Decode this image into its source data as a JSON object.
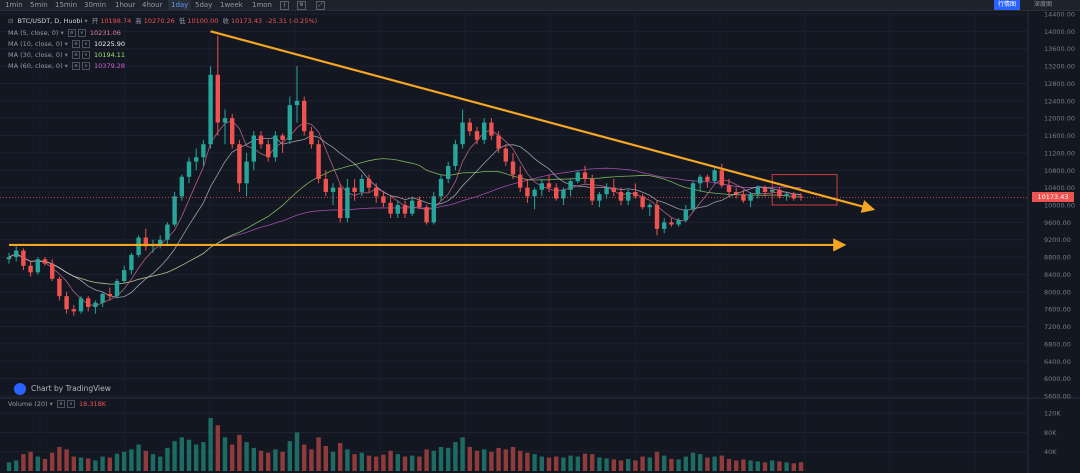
{
  "toolbar": {
    "timeframes": [
      "1min",
      "5min",
      "15min",
      "30min",
      "1hour",
      "4hour",
      "1day",
      "5day",
      "1week",
      "1mon"
    ],
    "active": "1day",
    "right_buttons": [
      "行情图",
      "深度图"
    ]
  },
  "legend": {
    "symbol": "BTC/USDT, D, Huobi",
    "open_label": "开",
    "open": "10198.74",
    "high_label": "高",
    "high": "10270.26",
    "low_label": "低",
    "low": "10100.00",
    "close_label": "收",
    "close": "10173.43",
    "change": "-25.31 (-0.25%)",
    "ma": [
      {
        "label": "MA (5, close, 0)",
        "value": "10231.06",
        "color": "#e57a9f"
      },
      {
        "label": "MA (10, close, 0)",
        "value": "10225.90",
        "color": "#f0f3fa"
      },
      {
        "label": "MA (30, close, 0)",
        "value": "10194.11",
        "color": "#9fe66d"
      },
      {
        "label": "MA (60, close, 0)",
        "value": "10379.28",
        "color": "#d15fd6"
      }
    ],
    "volume_label": "Volume (20)",
    "volume_value": "18.318K"
  },
  "watermark": "Chart by TradingView",
  "last_price": "10173.43",
  "chart_data": {
    "type": "candlestick",
    "price_axis_ticks": [
      "14400.00",
      "14000.00",
      "13600.00",
      "13200.00",
      "12800.00",
      "12400.00",
      "12000.00",
      "11600.00",
      "11200.00",
      "10800.00",
      "10400.00",
      "10000.00",
      "9600.00",
      "9200.00",
      "8800.00",
      "8400.00",
      "8000.00",
      "7600.00",
      "7200.00",
      "6800.00",
      "6400.00",
      "6000.00",
      "5600.00"
    ],
    "price_range": [
      5600,
      14400
    ],
    "volume_axis_ticks": [
      "120K",
      "80K",
      "40K"
    ],
    "volume_range": [
      0,
      135000
    ],
    "candles": [
      [
        8750,
        8900,
        8650,
        8800
      ],
      [
        8800,
        9050,
        8700,
        8950
      ],
      [
        8950,
        9000,
        8500,
        8600
      ],
      [
        8600,
        8700,
        8350,
        8450
      ],
      [
        8450,
        8800,
        8400,
        8750
      ],
      [
        8750,
        8800,
        8600,
        8650
      ],
      [
        8650,
        8750,
        8250,
        8300
      ],
      [
        8300,
        8350,
        7800,
        7900
      ],
      [
        7900,
        8000,
        7500,
        7600
      ],
      [
        7600,
        7700,
        7450,
        7550
      ],
      [
        7550,
        7900,
        7500,
        7850
      ],
      [
        7850,
        7900,
        7550,
        7650
      ],
      [
        7650,
        7800,
        7500,
        7750
      ],
      [
        7750,
        8000,
        7650,
        7950
      ],
      [
        7950,
        8100,
        7800,
        7900
      ],
      [
        7900,
        8300,
        7850,
        8250
      ],
      [
        8250,
        8600,
        8200,
        8500
      ],
      [
        8500,
        8900,
        8400,
        8850
      ],
      [
        8850,
        9300,
        8800,
        9250
      ],
      [
        9250,
        9450,
        8950,
        9050
      ],
      [
        9050,
        9200,
        8900,
        9100
      ],
      [
        9100,
        9300,
        9000,
        9200
      ],
      [
        9200,
        9600,
        9100,
        9550
      ],
      [
        9550,
        10300,
        9500,
        10200
      ],
      [
        10200,
        10700,
        10100,
        10650
      ],
      [
        10650,
        11100,
        10500,
        11000
      ],
      [
        11000,
        11300,
        10800,
        11100
      ],
      [
        11100,
        11500,
        10900,
        11400
      ],
      [
        11400,
        13200,
        11300,
        13000
      ],
      [
        13000,
        13900,
        11600,
        11900
      ],
      [
        11900,
        12200,
        11400,
        12000
      ],
      [
        12000,
        12100,
        11300,
        11400
      ],
      [
        11400,
        11500,
        10300,
        10500
      ],
      [
        10500,
        11200,
        10200,
        11000
      ],
      [
        11000,
        11700,
        10800,
        11600
      ],
      [
        11600,
        11700,
        11300,
        11400
      ],
      [
        11400,
        11500,
        11000,
        11100
      ],
      [
        11100,
        11700,
        11000,
        11600
      ],
      [
        11600,
        11650,
        11200,
        11500
      ],
      [
        11500,
        12500,
        11400,
        12300
      ],
      [
        12300,
        13200,
        11900,
        12400
      ],
      [
        12400,
        12500,
        11600,
        11700
      ],
      [
        11700,
        11800,
        11300,
        11400
      ],
      [
        11400,
        11500,
        10500,
        10600
      ],
      [
        10600,
        10800,
        10200,
        10300
      ],
      [
        10300,
        10500,
        10000,
        10400
      ],
      [
        10400,
        10500,
        9600,
        9700
      ],
      [
        9700,
        10600,
        9600,
        10400
      ],
      [
        10400,
        10600,
        10100,
        10300
      ],
      [
        10300,
        10700,
        10200,
        10600
      ],
      [
        10600,
        10700,
        10300,
        10400
      ],
      [
        10400,
        10500,
        10050,
        10200
      ],
      [
        10200,
        10300,
        9950,
        10050
      ],
      [
        10050,
        10200,
        9700,
        9800
      ],
      [
        9800,
        10100,
        9700,
        10000
      ],
      [
        10000,
        10100,
        9700,
        9800
      ],
      [
        9800,
        10200,
        9750,
        10100
      ],
      [
        10100,
        10200,
        9900,
        9950
      ],
      [
        9950,
        10000,
        9550,
        9600
      ],
      [
        9600,
        10300,
        9550,
        10200
      ],
      [
        10200,
        10700,
        10100,
        10600
      ],
      [
        10600,
        11000,
        10500,
        10900
      ],
      [
        10900,
        11500,
        10800,
        11400
      ],
      [
        11400,
        12200,
        11300,
        11900
      ],
      [
        11900,
        12000,
        11600,
        11700
      ],
      [
        11700,
        11800,
        11400,
        11500
      ],
      [
        11500,
        12000,
        11400,
        11900
      ],
      [
        11900,
        12000,
        11500,
        11600
      ],
      [
        11600,
        11700,
        11200,
        11300
      ],
      [
        11300,
        11400,
        10900,
        11000
      ],
      [
        11000,
        11200,
        10600,
        10700
      ],
      [
        10700,
        10900,
        10300,
        10400
      ],
      [
        10400,
        10600,
        10050,
        10200
      ],
      [
        10200,
        10400,
        9900,
        10350
      ],
      [
        10350,
        10600,
        10200,
        10500
      ],
      [
        10500,
        10700,
        10300,
        10400
      ],
      [
        10400,
        10500,
        10100,
        10150
      ],
      [
        10150,
        10400,
        10000,
        10350
      ],
      [
        10350,
        10600,
        10200,
        10550
      ],
      [
        10550,
        10800,
        10500,
        10750
      ],
      [
        10750,
        10900,
        10500,
        10600
      ],
      [
        10600,
        10700,
        10000,
        10100
      ],
      [
        10100,
        10300,
        9950,
        10250
      ],
      [
        10250,
        10500,
        10150,
        10400
      ],
      [
        10400,
        10600,
        10200,
        10300
      ],
      [
        10300,
        10400,
        10000,
        10100
      ],
      [
        10100,
        10350,
        10000,
        10300
      ],
      [
        10300,
        10500,
        10150,
        10200
      ],
      [
        10200,
        10250,
        9900,
        9950
      ],
      [
        9950,
        10050,
        9750,
        10000
      ],
      [
        10000,
        10100,
        9300,
        9450
      ],
      [
        9450,
        9700,
        9350,
        9600
      ],
      [
        9600,
        9700,
        9500,
        9550
      ],
      [
        9550,
        9700,
        9500,
        9650
      ],
      [
        9650,
        10000,
        9600,
        9900
      ],
      [
        9900,
        10550,
        9850,
        10500
      ],
      [
        10500,
        10700,
        10300,
        10650
      ],
      [
        10650,
        10700,
        10400,
        10550
      ],
      [
        10550,
        10850,
        10500,
        10800
      ],
      [
        10800,
        10950,
        10400,
        10450
      ],
      [
        10450,
        10600,
        10200,
        10300
      ],
      [
        10300,
        10400,
        10150,
        10250
      ],
      [
        10250,
        10350,
        10050,
        10100
      ],
      [
        10100,
        10300,
        9950,
        10250
      ],
      [
        10250,
        10450,
        10150,
        10400
      ],
      [
        10400,
        10450,
        10200,
        10300
      ],
      [
        10300,
        10400,
        10200,
        10350
      ],
      [
        10350,
        10400,
        10150,
        10200
      ],
      [
        10200,
        10300,
        10100,
        10250
      ],
      [
        10250,
        10300,
        10100,
        10150
      ],
      [
        10198.74,
        10270.26,
        10100,
        10173.43
      ]
    ],
    "volumes": [
      18,
      22,
      35,
      40,
      30,
      25,
      38,
      50,
      45,
      30,
      28,
      26,
      22,
      30,
      28,
      36,
      40,
      45,
      55,
      42,
      35,
      30,
      48,
      62,
      70,
      65,
      55,
      60,
      110,
      95,
      70,
      55,
      75,
      60,
      48,
      42,
      38,
      45,
      40,
      62,
      80,
      55,
      45,
      70,
      52,
      40,
      58,
      45,
      35,
      38,
      32,
      30,
      34,
      42,
      35,
      30,
      32,
      30,
      45,
      42,
      50,
      48,
      60,
      70,
      50,
      42,
      45,
      40,
      48,
      45,
      50,
      42,
      38,
      35,
      30,
      28,
      30,
      28,
      32,
      30,
      36,
      35,
      28,
      26,
      24,
      22,
      25,
      22,
      30,
      28,
      40,
      32,
      25,
      24,
      30,
      38,
      35,
      28,
      30,
      32,
      25,
      22,
      24,
      22,
      20,
      18,
      22,
      20,
      18,
      16,
      18.3
    ],
    "trendlines": [
      {
        "from": [
          28,
          14000
        ],
        "to": [
          120,
          9900
        ],
        "color": "#f5a623"
      },
      {
        "from": [
          0,
          9080
        ],
        "to": [
          116,
          9080
        ],
        "color": "#f5a623"
      }
    ],
    "highlight_box": {
      "from": [
        106,
        10700
      ],
      "to": [
        115,
        10000
      ],
      "color": "#e04040"
    }
  }
}
